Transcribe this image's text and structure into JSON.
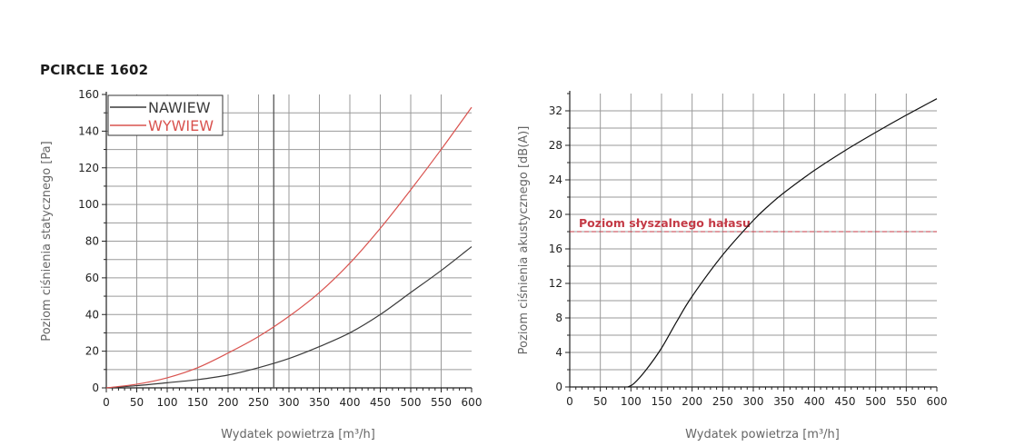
{
  "page": {
    "title": "PCIRCLE 1602"
  },
  "chart_data": [
    {
      "type": "line",
      "xlabel": "Wydatek powietrza [m³/h]",
      "ylabel": "Poziom ciśnienia statycznego [Pa]",
      "xlim": [
        0,
        600
      ],
      "ylim": [
        0,
        160
      ],
      "xticks": [
        0,
        50,
        100,
        150,
        200,
        250,
        300,
        350,
        400,
        450,
        500,
        550,
        600
      ],
      "yticks": [
        0,
        20,
        40,
        60,
        80,
        100,
        120,
        140,
        160
      ],
      "grid": true,
      "legend": "top-left",
      "marker_line_x": 275,
      "series": [
        {
          "name": "NAWIEW",
          "color": "#3a3a3a",
          "x": [
            0,
            50,
            100,
            150,
            200,
            250,
            300,
            350,
            400,
            450,
            500,
            550,
            600
          ],
          "y": [
            0,
            1.2,
            2.8,
            4.5,
            7,
            11,
            16,
            22.5,
            30,
            40,
            52,
            64,
            77
          ]
        },
        {
          "name": "WYWIEW",
          "color": "#d9534f",
          "x": [
            0,
            50,
            100,
            150,
            200,
            250,
            300,
            350,
            400,
            450,
            500,
            550,
            600
          ],
          "y": [
            0,
            2,
            5.5,
            11,
            19,
            28,
            39,
            52,
            68,
            87,
            108,
            130,
            153
          ]
        }
      ]
    },
    {
      "type": "line",
      "xlabel": "Wydatek powietrza [m³/h]",
      "ylabel": "Poziom ciśnienia akustycznego [dB(A)]",
      "xlim": [
        0,
        600
      ],
      "ylim": [
        0,
        34
      ],
      "xticks": [
        0,
        50,
        100,
        150,
        200,
        250,
        300,
        350,
        400,
        450,
        500,
        550,
        600
      ],
      "yticks": [
        0,
        4,
        8,
        12,
        16,
        20,
        24,
        28,
        32
      ],
      "grid": true,
      "threshold": {
        "y": 18,
        "label": "Poziom słyszalnego hałasu",
        "color": "#c43a46"
      },
      "series": [
        {
          "color": "#111111",
          "x": [
            95,
            105,
            125,
            150,
            175,
            200,
            250,
            300,
            325,
            350,
            400,
            450,
            500,
            550,
            600
          ],
          "y": [
            0,
            0.4,
            2,
            4.5,
            7.6,
            10.5,
            15.3,
            19.3,
            21,
            22.5,
            25.1,
            27.4,
            29.5,
            31.5,
            33.4
          ]
        }
      ]
    }
  ]
}
